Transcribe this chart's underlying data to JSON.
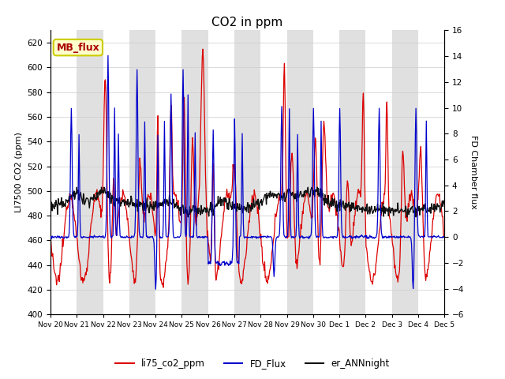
{
  "title": "CO2 in ppm",
  "ylabel_left": "LI7500 CO2 (ppm)",
  "ylabel_right": "FD Chamber flux",
  "ylim_left": [
    400,
    630
  ],
  "ylim_right": [
    -6,
    16
  ],
  "yticks_left": [
    400,
    420,
    440,
    460,
    480,
    500,
    520,
    540,
    560,
    580,
    600,
    620
  ],
  "yticks_right": [
    -6,
    -4,
    -2,
    0,
    2,
    4,
    6,
    8,
    10,
    12,
    14,
    16
  ],
  "xticklabels": [
    "Nov 20",
    "Nov 21",
    "Nov 22",
    "Nov 23",
    "Nov 24",
    "Nov 25",
    "Nov 26",
    "Nov 27",
    "Nov 28",
    "Nov 29",
    "Nov 30",
    "Dec 1",
    "Dec 2",
    "Dec 3",
    "Dec 4",
    "Dec 5"
  ],
  "color_red": "#dd0000",
  "color_blue": "#0000cc",
  "color_black": "#111111",
  "background_band_color": "#e0e0e0",
  "annotation_text": "MB_flux",
  "annotation_bg": "#ffffcc",
  "annotation_border": "#cccc00",
  "legend_entries": [
    "li75_co2_ppm",
    "FD_Flux",
    "er_ANNnight"
  ],
  "title_fontsize": 11
}
